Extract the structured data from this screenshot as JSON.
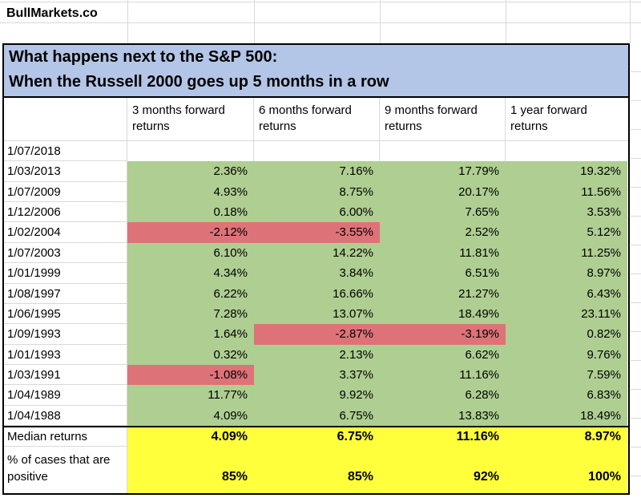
{
  "brand": "BullMarkets.co",
  "title": {
    "line1": "What happens next to the S&P 500:",
    "line2": "When the Russell 2000 goes up 5 months in a row"
  },
  "colors": {
    "title_fill": "#b4c6e7",
    "positive_fill": "#afce92",
    "negative_fill": "#dd7379",
    "summary_fill": "#ffff3c",
    "gridline": "#d9d9d9",
    "border": "#000000"
  },
  "chart_data": {
    "type": "table",
    "title": "What happens next to the S&P 500: When the Russell 2000 goes up 5 months in a row",
    "columns": [
      "3 months forward returns",
      "6 months forward returns",
      "9 months forward returns",
      "1 year forward returns"
    ],
    "rows": [
      {
        "date": "1/07/2018",
        "values": [
          "",
          "",
          "",
          ""
        ],
        "fills": [
          "white",
          "white",
          "white",
          "white"
        ]
      },
      {
        "date": "1/03/2013",
        "values": [
          "2.36%",
          "7.16%",
          "17.79%",
          "19.32%"
        ],
        "fills": [
          "green",
          "green",
          "green",
          "green"
        ]
      },
      {
        "date": "1/07/2009",
        "values": [
          "4.93%",
          "8.75%",
          "20.17%",
          "11.56%"
        ],
        "fills": [
          "green",
          "green",
          "green",
          "green"
        ]
      },
      {
        "date": "1/12/2006",
        "values": [
          "0.18%",
          "6.00%",
          "7.65%",
          "3.53%"
        ],
        "fills": [
          "green",
          "green",
          "green",
          "green"
        ]
      },
      {
        "date": "1/02/2004",
        "values": [
          "-2.12%",
          "-3.55%",
          "2.52%",
          "5.12%"
        ],
        "fills": [
          "red",
          "red",
          "green",
          "green"
        ]
      },
      {
        "date": "1/07/2003",
        "values": [
          "6.10%",
          "14.22%",
          "11.81%",
          "11.25%"
        ],
        "fills": [
          "green",
          "green",
          "green",
          "green"
        ]
      },
      {
        "date": "1/01/1999",
        "values": [
          "4.34%",
          "3.84%",
          "6.51%",
          "8.97%"
        ],
        "fills": [
          "green",
          "green",
          "green",
          "green"
        ]
      },
      {
        "date": "1/08/1997",
        "values": [
          "6.22%",
          "16.66%",
          "21.27%",
          "6.43%"
        ],
        "fills": [
          "green",
          "green",
          "green",
          "green"
        ]
      },
      {
        "date": "1/06/1995",
        "values": [
          "7.28%",
          "13.07%",
          "18.49%",
          "23.11%"
        ],
        "fills": [
          "green",
          "green",
          "green",
          "green"
        ]
      },
      {
        "date": "1/09/1993",
        "values": [
          "1.64%",
          "-2.87%",
          "-3.19%",
          "0.82%"
        ],
        "fills": [
          "green",
          "red",
          "red",
          "green"
        ]
      },
      {
        "date": "1/01/1993",
        "values": [
          "0.32%",
          "2.13%",
          "6.62%",
          "9.76%"
        ],
        "fills": [
          "green",
          "green",
          "green",
          "green"
        ]
      },
      {
        "date": "1/03/1991",
        "values": [
          "-1.08%",
          "3.37%",
          "11.16%",
          "7.59%"
        ],
        "fills": [
          "red",
          "green",
          "green",
          "green"
        ]
      },
      {
        "date": "1/04/1989",
        "values": [
          "11.77%",
          "9.92%",
          "6.28%",
          "6.83%"
        ],
        "fills": [
          "green",
          "green",
          "green",
          "green"
        ]
      },
      {
        "date": "1/04/1988",
        "values": [
          "4.09%",
          "6.75%",
          "13.83%",
          "18.49%"
        ],
        "fills": [
          "green",
          "green",
          "green",
          "green"
        ]
      }
    ],
    "summary_rows": [
      {
        "label": "Median returns",
        "values": [
          "4.09%",
          "6.75%",
          "11.16%",
          "8.97%"
        ]
      },
      {
        "label": "% of cases that are positive",
        "values": [
          "85%",
          "85%",
          "92%",
          "100%"
        ]
      }
    ]
  }
}
